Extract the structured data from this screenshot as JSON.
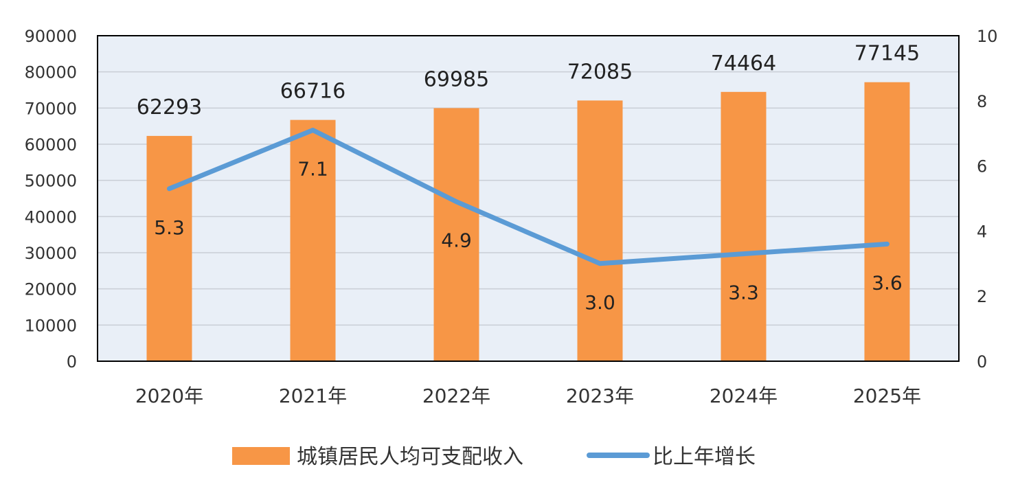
{
  "chart_data": {
    "type": "bar",
    "categories": [
      "2020年",
      "2021年",
      "2022年",
      "2023年",
      "2024年",
      "2025年"
    ],
    "series": [
      {
        "name": "城镇居民人均可支配收入",
        "type": "bar",
        "axis": "left",
        "values": [
          62293,
          66716,
          69985,
          72085,
          74464,
          77145
        ],
        "labels": [
          "62293",
          "66716",
          "69985",
          "72085",
          "74464",
          "77145"
        ],
        "color": "#F79646"
      },
      {
        "name": "比上年增长",
        "type": "line",
        "axis": "right",
        "values": [
          5.3,
          7.1,
          4.9,
          3.0,
          3.3,
          3.6
        ],
        "labels": [
          "5.3",
          "7.1",
          "4.9",
          "3.0",
          "3.3",
          "3.6"
        ],
        "color": "#5B9BD5"
      }
    ],
    "y_left": {
      "range": [
        0,
        90000
      ],
      "ticks": [
        "0",
        "10000",
        "20000",
        "30000",
        "40000",
        "50000",
        "60000",
        "70000",
        "80000",
        "90000"
      ]
    },
    "y_right": {
      "range": [
        0,
        10
      ],
      "ticks": [
        "0",
        "2",
        "4",
        "6",
        "8",
        "10"
      ]
    },
    "grid": true,
    "legend": "bottom",
    "plot_background": "#E9EFF7"
  }
}
